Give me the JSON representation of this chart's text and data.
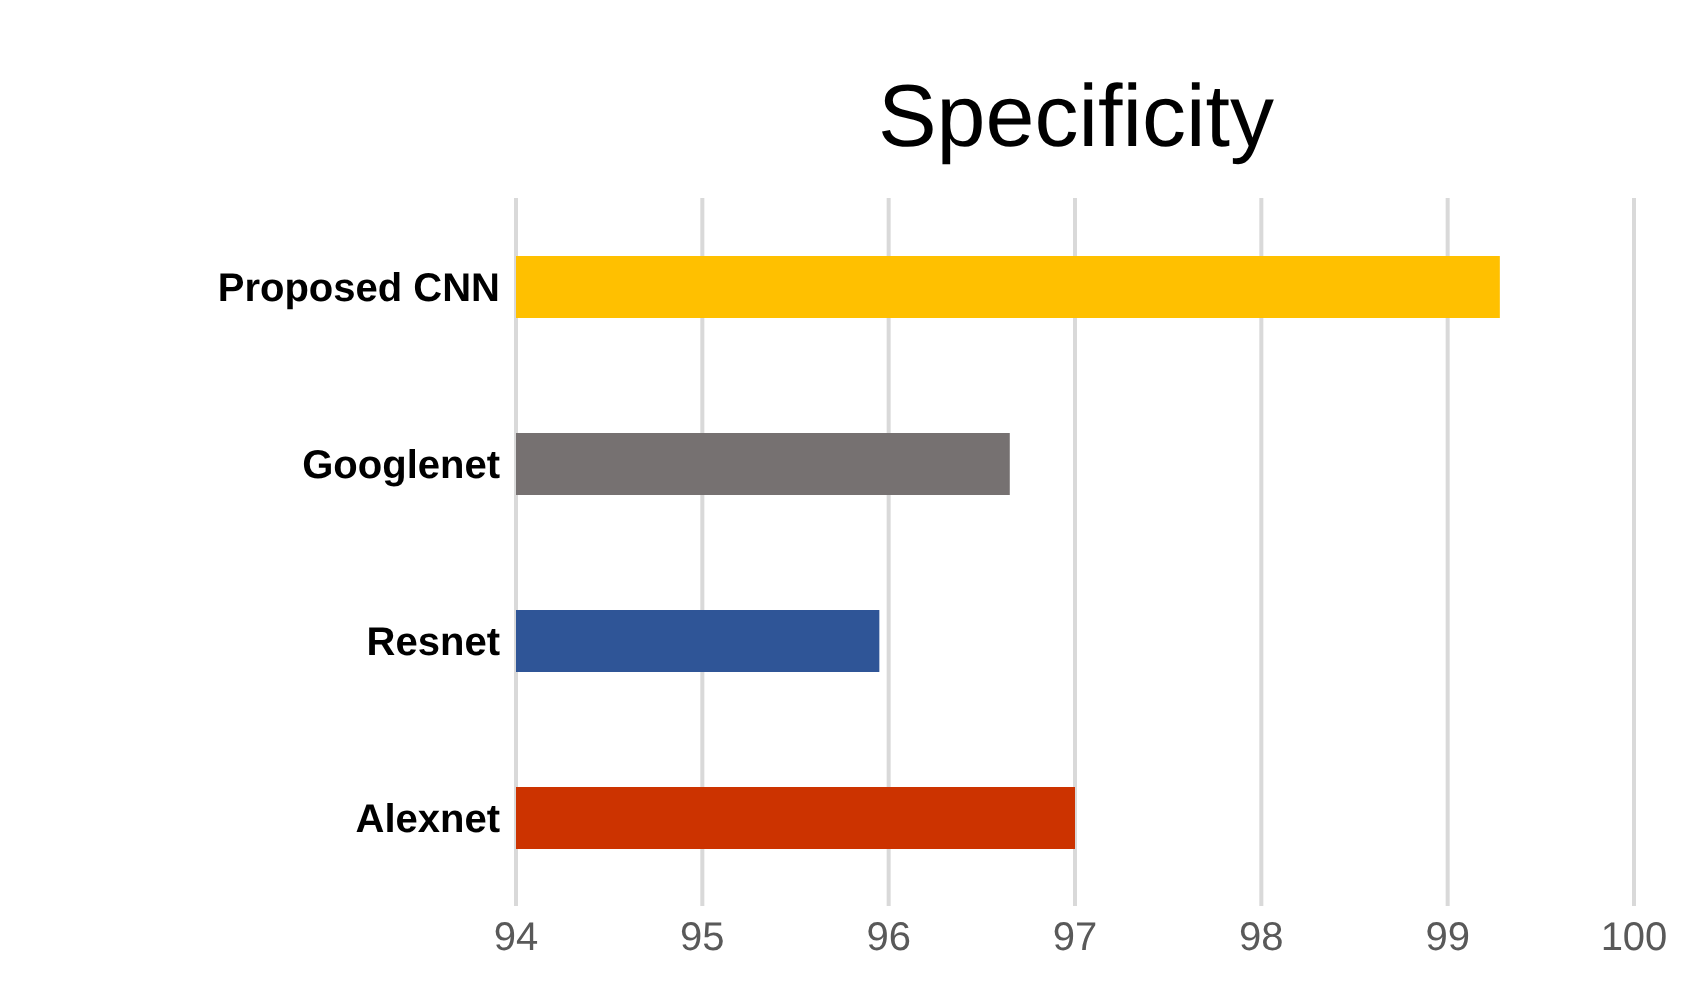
{
  "chart_data": {
    "type": "bar",
    "orientation": "horizontal",
    "title": "Specificity",
    "categories": [
      "Proposed CNN",
      "Googlenet",
      "Resnet",
      "Alexnet"
    ],
    "values": [
      99.28,
      96.65,
      95.95,
      97.0
    ],
    "colors": [
      "#ffc000",
      "#767171",
      "#2f5597",
      "#cc3300"
    ],
    "xlim": [
      94,
      100
    ],
    "xticks": [
      94,
      95,
      96,
      97,
      98,
      99,
      100
    ],
    "grid": "x"
  }
}
